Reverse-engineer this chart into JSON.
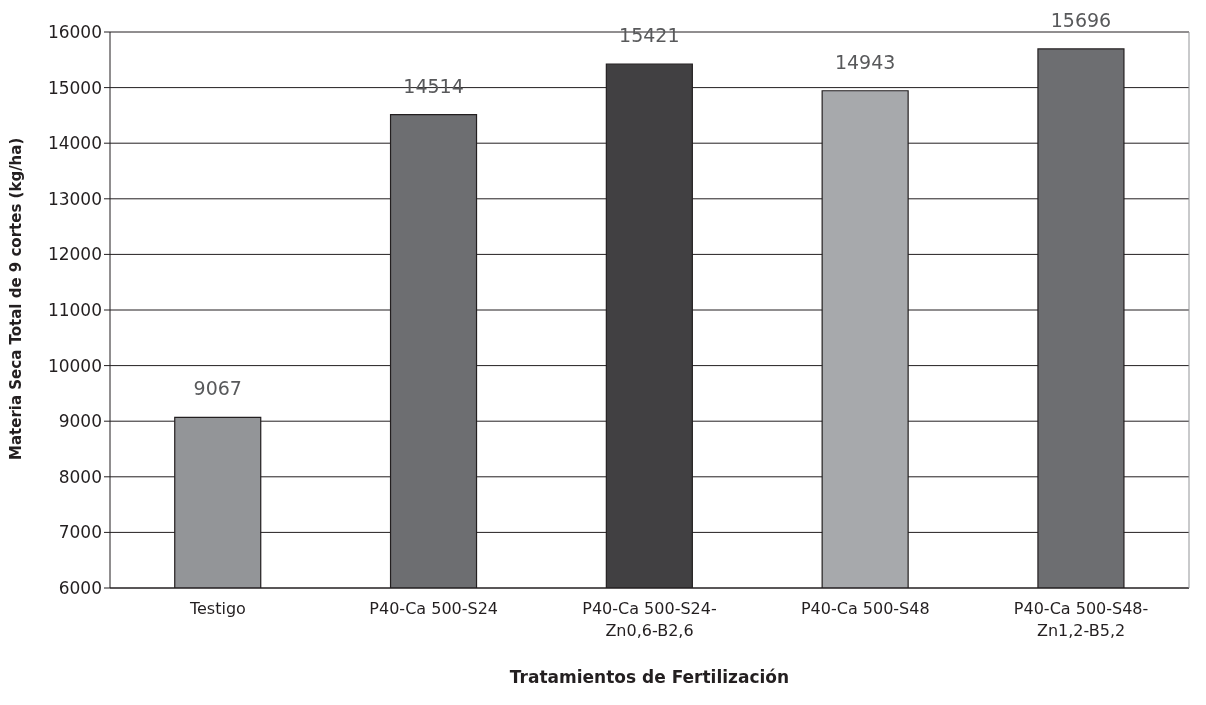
{
  "chart_data": {
    "type": "bar",
    "xlabel": "Tratamientos de Fertilización",
    "ylabel": "Materia Seca Total de 9 cortes (kg/ha)",
    "categories": [
      "Testigo",
      "P40-Ca 500-S24",
      "P40-Ca 500-S24-\nZn0,6-B2,6",
      "P40-Ca 500-S48",
      "P40-Ca 500-S48-\nZn1,2-B5,2"
    ],
    "values": [
      9067,
      14514,
      15421,
      14943,
      15696
    ],
    "colors": [
      "#939598",
      "#6d6e71",
      "#414042",
      "#a7a9ac",
      "#6d6e71"
    ],
    "ylim": [
      6000,
      16000
    ],
    "yticks": [
      6000,
      7000,
      8000,
      9000,
      10000,
      11000,
      12000,
      13000,
      14000,
      15000,
      16000
    ],
    "grid": "y",
    "data_labels": true,
    "legend": false
  }
}
